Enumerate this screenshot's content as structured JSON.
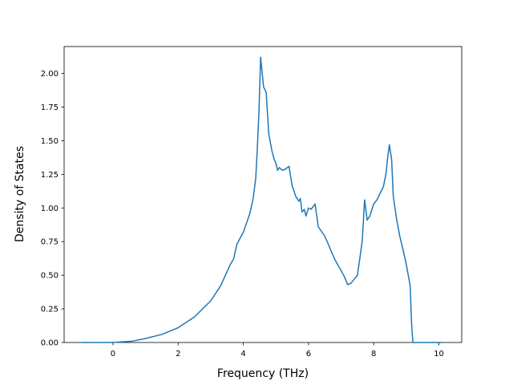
{
  "chart_data": {
    "type": "line",
    "xlabel": "Frequency (THz)",
    "ylabel": "Density of States",
    "xlim": [
      -1.5,
      10.7
    ],
    "ylim": [
      0,
      2.2
    ],
    "xticks": [
      0,
      2,
      4,
      6,
      8,
      10
    ],
    "yticks": [
      0.0,
      0.25,
      0.5,
      0.75,
      1.0,
      1.25,
      1.5,
      1.75,
      2.0
    ],
    "xtick_labels": [
      "0",
      "2",
      "4",
      "6",
      "8",
      "10"
    ],
    "ytick_labels": [
      "0.00",
      "0.25",
      "0.50",
      "0.75",
      "1.00",
      "1.25",
      "1.50",
      "1.75",
      "2.00"
    ],
    "grid": false,
    "line_color": "#1f77b4",
    "series": [
      {
        "x": [
          -0.95,
          0.0,
          0.3,
          0.6,
          1.0,
          1.5,
          2.0,
          2.5,
          3.0,
          3.3,
          3.6,
          3.7,
          3.8,
          4.0,
          4.2,
          4.3,
          4.38,
          4.43,
          4.48,
          4.53,
          4.62,
          4.7,
          4.78,
          4.88,
          4.95,
          5.0,
          5.05,
          5.1,
          5.2,
          5.3,
          5.4,
          5.5,
          5.55,
          5.6,
          5.7,
          5.75,
          5.8,
          5.87,
          5.92,
          6.0,
          6.08,
          6.2,
          6.3,
          6.5,
          6.8,
          7.1,
          7.2,
          7.3,
          7.4,
          7.5,
          7.6,
          7.65,
          7.72,
          7.8,
          7.88,
          8.0,
          8.1,
          8.2,
          8.3,
          8.38,
          8.43,
          8.48,
          8.55,
          8.6,
          8.7,
          8.8,
          8.9,
          9.0,
          9.12,
          9.16,
          9.2,
          9.3,
          10.0,
          10.1
        ],
        "y": [
          0.0,
          0.0,
          0.005,
          0.01,
          0.03,
          0.06,
          0.11,
          0.19,
          0.31,
          0.42,
          0.58,
          0.62,
          0.73,
          0.82,
          0.96,
          1.07,
          1.22,
          1.45,
          1.72,
          2.12,
          1.9,
          1.86,
          1.55,
          1.42,
          1.36,
          1.33,
          1.28,
          1.3,
          1.28,
          1.29,
          1.31,
          1.16,
          1.13,
          1.09,
          1.05,
          1.07,
          0.97,
          0.99,
          0.94,
          1.0,
          0.99,
          1.03,
          0.86,
          0.79,
          0.62,
          0.49,
          0.43,
          0.44,
          0.47,
          0.5,
          0.67,
          0.76,
          1.06,
          0.91,
          0.94,
          1.03,
          1.06,
          1.11,
          1.16,
          1.26,
          1.38,
          1.47,
          1.36,
          1.09,
          0.92,
          0.79,
          0.69,
          0.58,
          0.42,
          0.15,
          0.0,
          0.0,
          0.0,
          0.0
        ]
      }
    ]
  }
}
